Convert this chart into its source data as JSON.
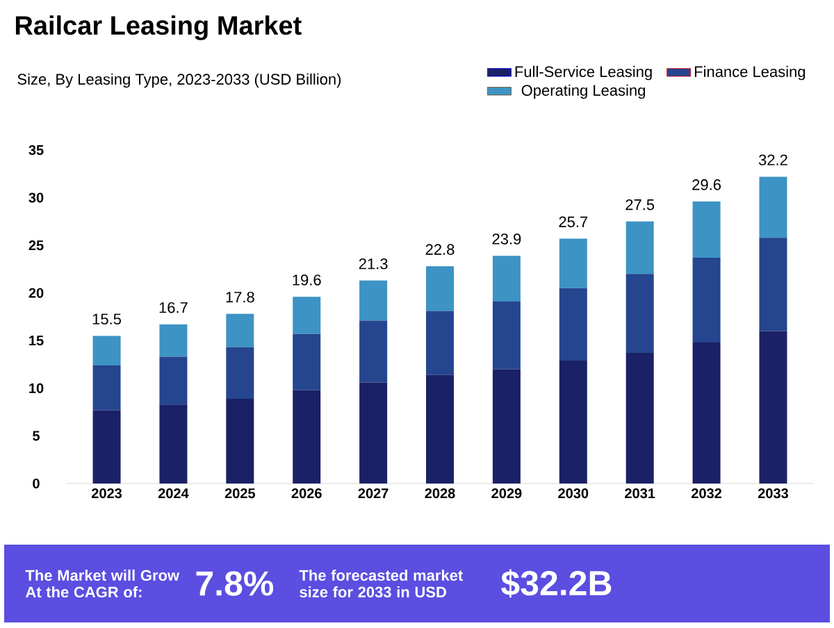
{
  "chart_data": {
    "type": "bar",
    "title": "Railcar Leasing Market",
    "subtitle": "Size, By Leasing Type, 2023-2033 (USD Billion)",
    "categories": [
      "2023",
      "2024",
      "2025",
      "2026",
      "2027",
      "2028",
      "2029",
      "2030",
      "2031",
      "2032",
      "2033"
    ],
    "series": [
      {
        "name": "Full-Service Leasing",
        "color": "#1a2166",
        "values": [
          7.7,
          8.3,
          8.9,
          9.8,
          10.6,
          11.4,
          12.0,
          12.9,
          13.7,
          14.8,
          16.0
        ]
      },
      {
        "name": "Finance Leasing",
        "color": "#25458f",
        "values": [
          4.7,
          5.0,
          5.4,
          5.9,
          6.5,
          6.7,
          7.1,
          7.6,
          8.3,
          8.9,
          9.8
        ]
      },
      {
        "name": "Operating Leasing",
        "color": "#3d93c4",
        "values": [
          3.1,
          3.4,
          3.5,
          3.9,
          4.2,
          4.7,
          4.8,
          5.2,
          5.5,
          5.9,
          6.4
        ]
      }
    ],
    "stacked": true,
    "totals": [
      "15.5",
      "16.7",
      "17.8",
      "19.6",
      "21.3",
      "22.8",
      "23.9",
      "25.7",
      "27.5",
      "29.6",
      "32.2"
    ],
    "ylim": [
      0,
      35
    ],
    "yticks": [
      0,
      5,
      10,
      15,
      20,
      25,
      30,
      35
    ],
    "legend": "top right",
    "annotations": [
      "The Market will Grow At the CAGR of:",
      "7.8%",
      "The forecasted market size for 2033 in USD",
      "$32.2B"
    ]
  }
}
